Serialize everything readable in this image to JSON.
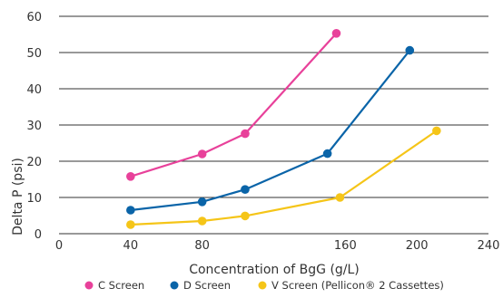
{
  "chart_data": {
    "type": "line",
    "title": "",
    "xlabel": "Concentration of BgG (g/L)",
    "ylabel": "Delta P (psi)",
    "xlim": [
      0,
      240
    ],
    "ylim": [
      0,
      60
    ],
    "x_ticks": [
      "0",
      "40",
      "80",
      "160",
      "200",
      "240"
    ],
    "x_tick_values": [
      0,
      40,
      80,
      160,
      200,
      240
    ],
    "y_ticks": [
      "0",
      "10",
      "20",
      "30",
      "40",
      "50",
      "60"
    ],
    "y_tick_values": [
      0,
      10,
      20,
      30,
      40,
      50,
      60
    ],
    "grid": "horizontal",
    "legend_position": "bottom",
    "series": [
      {
        "name": "C Screen",
        "color": "#e8419a",
        "points": [
          [
            40,
            15.8
          ],
          [
            80,
            22.0
          ],
          [
            104,
            27.6
          ],
          [
            155,
            55.3
          ]
        ]
      },
      {
        "name": "D Screen",
        "color": "#0a64a8",
        "points": [
          [
            40,
            6.5
          ],
          [
            80,
            8.8
          ],
          [
            104,
            12.2
          ],
          [
            150,
            22.1
          ],
          [
            196,
            50.6
          ]
        ]
      },
      {
        "name": "V Screen (Pellicon® 2 Cassettes)",
        "color": "#f5c518",
        "points": [
          [
            40,
            2.5
          ],
          [
            80,
            3.5
          ],
          [
            104,
            4.9
          ],
          [
            157,
            10.0
          ],
          [
            211,
            28.4
          ]
        ]
      }
    ]
  }
}
